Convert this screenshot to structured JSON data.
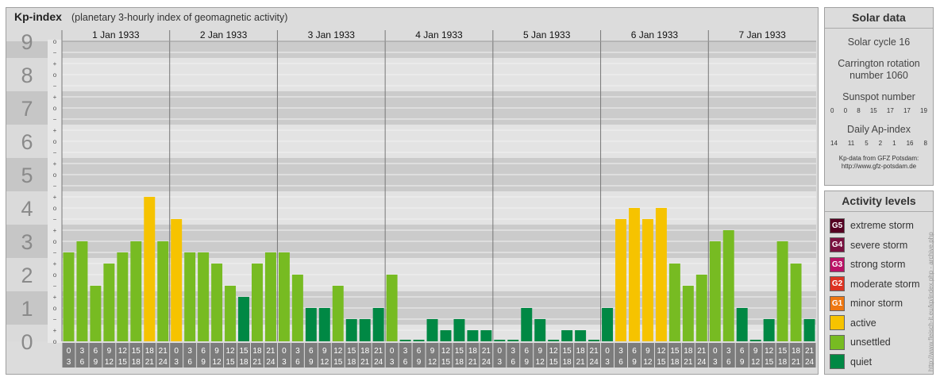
{
  "header": {
    "title": "Kp-index",
    "subtitle": "(planetary 3-hourly index of geomagnetic activity)"
  },
  "chart_data": {
    "type": "bar",
    "title": "Kp-index",
    "subtitle": "(planetary 3-hourly index of geomagnetic activity)",
    "ylim": [
      0,
      9
    ],
    "y_major_ticks": [
      "0",
      "1",
      "2",
      "3",
      "4",
      "5",
      "6",
      "7",
      "8",
      "9"
    ],
    "y_minor_ticks": [
      "o",
      "+",
      "−",
      "o",
      "+",
      "−",
      "o",
      "+",
      "−",
      "o",
      "+",
      "−",
      "o",
      "+",
      "−",
      "o",
      "+",
      "−",
      "o",
      "+",
      "−",
      "o",
      "+",
      "−",
      "o",
      "+",
      "−",
      "o"
    ],
    "days": [
      "1 Jan 1933",
      "2 Jan 1933",
      "3 Jan 1933",
      "4 Jan 1933",
      "5 Jan 1933",
      "6 Jan 1933",
      "7 Jan 1933"
    ],
    "interval_labels": [
      [
        "0",
        "3"
      ],
      [
        "3",
        "6"
      ],
      [
        "6",
        "9"
      ],
      [
        "9",
        "12"
      ],
      [
        "12",
        "15"
      ],
      [
        "15",
        "18"
      ],
      [
        "18",
        "21"
      ],
      [
        "21",
        "24"
      ]
    ],
    "values": [
      [
        2.667,
        3.0,
        1.667,
        2.333,
        2.667,
        3.0,
        4.333,
        3.0
      ],
      [
        3.667,
        2.667,
        2.667,
        2.333,
        1.667,
        1.333,
        2.333,
        2.667
      ],
      [
        2.667,
        2.0,
        1.0,
        1.0,
        1.667,
        0.667,
        0.667,
        1.0
      ],
      [
        2.0,
        0.0,
        0.0,
        0.667,
        0.333,
        0.667,
        0.333,
        0.333
      ],
      [
        0.0,
        0.0,
        1.0,
        0.667,
        0.0,
        0.333,
        0.333,
        0.0
      ],
      [
        1.0,
        3.667,
        4.0,
        3.667,
        4.0,
        2.333,
        1.667,
        2.0
      ],
      [
        3.0,
        3.333,
        1.0,
        0.0,
        0.667,
        3.0,
        2.333,
        0.667
      ]
    ],
    "colors": {
      "quiet": "#008844",
      "unsettled": "#77bb22",
      "active": "#f6c300"
    },
    "grid": true
  },
  "solar": {
    "title": "Solar data",
    "cycle": "Solar cycle 16",
    "carrington_1": "Carrington rotation",
    "carrington_2": "number 1060",
    "sunspot_title": "Sunspot number",
    "sunspot_values": [
      "0",
      "0",
      "8",
      "15",
      "17",
      "17",
      "19"
    ],
    "ap_title": "Daily Ap-index",
    "ap_values": [
      "14",
      "11",
      "5",
      "2",
      "1",
      "16",
      "8"
    ],
    "source_1": "Kp-data from GFZ Potsdam:",
    "source_2": "http://www.gfz-potsdam.de"
  },
  "legend": {
    "title": "Activity levels",
    "items": [
      {
        "badge": "G5",
        "label": "extreme storm",
        "color": "#550022"
      },
      {
        "badge": "G4",
        "label": "severe storm",
        "color": "#7a1040"
      },
      {
        "badge": "G3",
        "label": "strong storm",
        "color": "#bb1166"
      },
      {
        "badge": "G2",
        "label": "moderate storm",
        "color": "#dd3322"
      },
      {
        "badge": "G1",
        "label": "minor storm",
        "color": "#ee7711"
      },
      {
        "badge": "",
        "label": "active",
        "color": "#f6c300"
      },
      {
        "badge": "",
        "label": "unsettled",
        "color": "#77bb22"
      },
      {
        "badge": "",
        "label": "quiet",
        "color": "#008844"
      }
    ]
  },
  "credit": "http://www.fleisch-it.eu/kp/index.php - archive.php"
}
